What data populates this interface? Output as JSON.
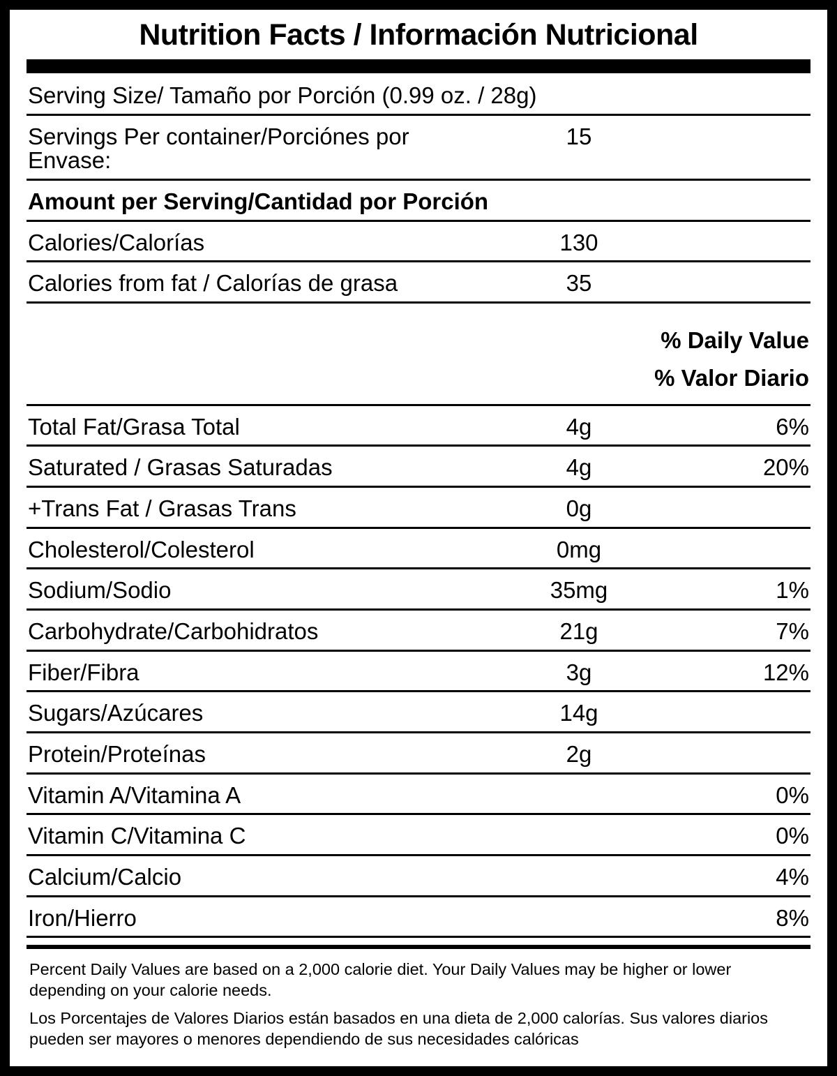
{
  "label": {
    "title": "Nutrition Facts / Información Nutricional",
    "serving_size": "Serving Size/ Tamaño por Porción  (0.99 oz. / 28g)",
    "servings_per_container": {
      "label": "Servings Per container/Porciónes por Envase:",
      "value": "15"
    },
    "amount_per_serving": "Amount per Serving/Cantidad por Porción",
    "calories": {
      "label": "Calories/Calorías",
      "value": "130"
    },
    "calories_from_fat": {
      "label": "Calories from fat / Calorías de grasa",
      "value": "35"
    },
    "daily_value_header": {
      "en": "% Daily Value",
      "es": "% Valor Diario"
    },
    "nutrients": [
      {
        "label": "Total Fat/Grasa Total",
        "amount": "4g",
        "dv": "6%"
      },
      {
        "label": "Saturated / Grasas Saturadas",
        "amount": "4g",
        "dv": "20%"
      },
      {
        "label": "+Trans Fat / Grasas Trans",
        "amount": "0g",
        "dv": ""
      },
      {
        "label": "Cholesterol/Colesterol",
        "amount": "0mg",
        "dv": ""
      },
      {
        "label": "Sodium/Sodio",
        "amount": "35mg",
        "dv": "1%"
      },
      {
        "label": "Carbohydrate/Carbohidratos",
        "amount": "21g",
        "dv": "7%"
      },
      {
        "label": "Fiber/Fibra",
        "amount": "3g",
        "dv": "12%"
      },
      {
        "label": "Sugars/Azúcares",
        "amount": "14g",
        "dv": ""
      },
      {
        "label": "Protein/Proteínas",
        "amount": "2g",
        "dv": ""
      },
      {
        "label": "Vitamin A/Vitamina A",
        "amount": "",
        "dv": "0%"
      },
      {
        "label": "Vitamin C/Vitamina C",
        "amount": "",
        "dv": "0%"
      },
      {
        "label": "Calcium/Calcio",
        "amount": "",
        "dv": "4%"
      },
      {
        "label": "Iron/Hierro",
        "amount": "",
        "dv": "8%"
      }
    ],
    "footnote_en": "Percent Daily Values are based on a 2,000 calorie diet. Your Daily Values may be higher or lower depending on your calorie needs.",
    "footnote_es": "Los Porcentajes de Valores Diarios están basados en una dieta de 2,000 calorías. Sus valores diarios pueden ser mayores o menores dependiendo de sus necesidades calóricas"
  }
}
